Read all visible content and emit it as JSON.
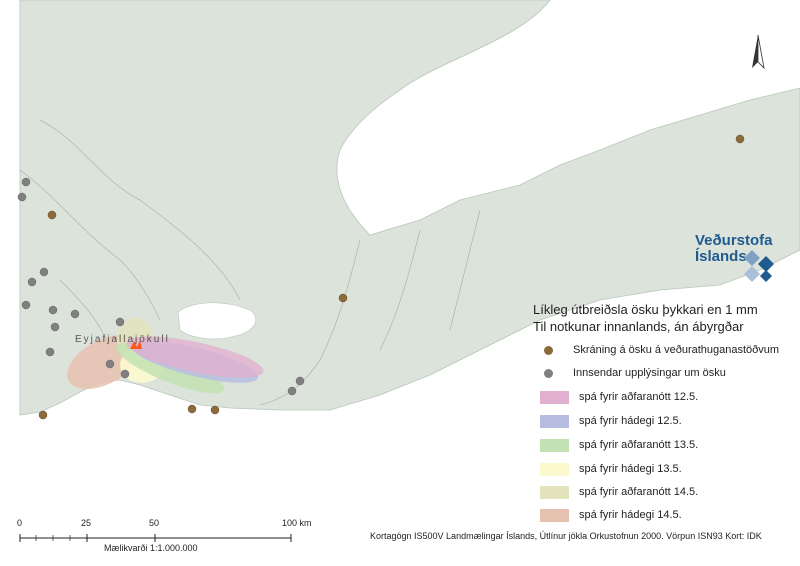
{
  "map": {
    "volcano_label": "Eyjafjallajökull"
  },
  "legend": {
    "title_line1": "Líkleg útbreiðsla ösku þykkari en 1 mm",
    "title_line2": "Til notkunar innanlands, án ábyrgðar",
    "points": [
      {
        "label": "Skráning á ösku á veðurathuganastöðvum",
        "color": "#8b6a3c"
      },
      {
        "label": "Innsendar upplýsingar um ösku",
        "color": "#808080"
      }
    ],
    "forecasts": [
      {
        "label": "spá fyrir aðfaranótt 12.5.",
        "color": "#e1b0cf"
      },
      {
        "label": "spá fyrir hádegi 12.5.",
        "color": "#b7bde0"
      },
      {
        "label": "spá fyrir aðfaranótt 13.5.",
        "color": "#c3e2b3"
      },
      {
        "label": "spá fyrir hádegi 13.5.",
        "color": "#fdf9cf"
      },
      {
        "label": "spá fyrir aðfaranótt 14.5.",
        "color": "#e3e4bb"
      },
      {
        "label": "spá fyrir hádegi 14.5.",
        "color": "#e6c1b0"
      }
    ]
  },
  "logo": {
    "line1": "Veðurstofa",
    "line2": "Íslands"
  },
  "scale": {
    "ticks": [
      "0",
      "25",
      "50",
      "100 km"
    ],
    "caption": "Mælikvarði 1:1.000.000"
  },
  "credits": "Kortagögn IS500V Landmælingar Íslands, Útlínur jökla Orkustofnun 2000. Vörpun ISN93 Kort: IDK"
}
